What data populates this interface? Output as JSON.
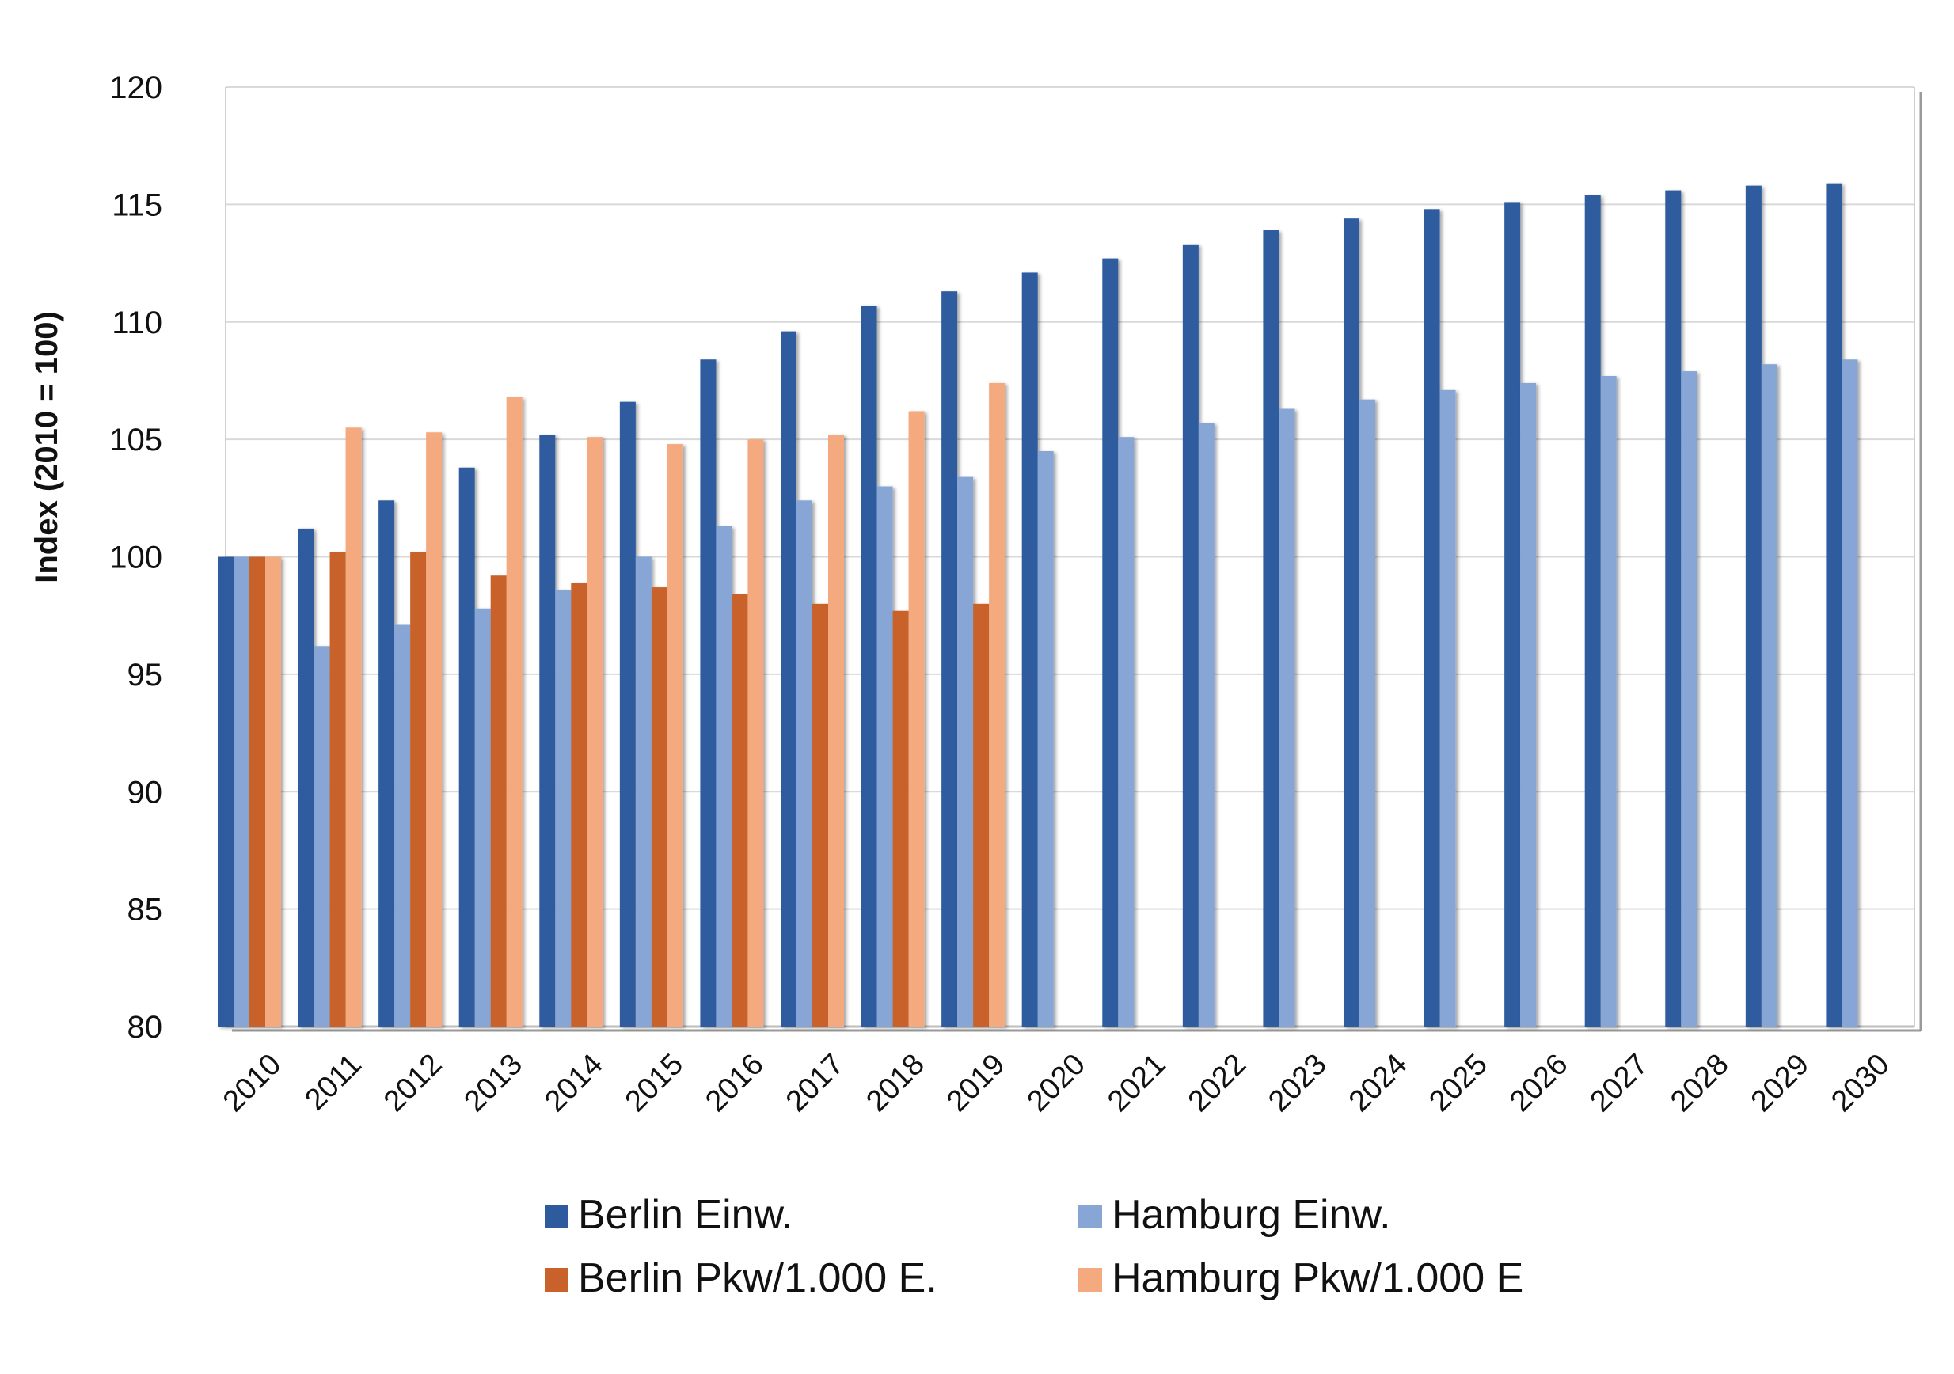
{
  "chart_data": {
    "type": "bar",
    "title": "",
    "xlabel": "",
    "ylabel": "Index (2010 = 100)",
    "ylim": [
      80,
      120
    ],
    "yticks": [
      80,
      85,
      90,
      95,
      100,
      105,
      110,
      115,
      120
    ],
    "grid": true,
    "legend_position": "bottom",
    "categories": [
      "2010",
      "2011",
      "2012",
      "2013",
      "2014",
      "2015",
      "2016",
      "2017",
      "2018",
      "2019",
      "2020",
      "2021",
      "2022",
      "2023",
      "2024",
      "2025",
      "2026",
      "2027",
      "2028",
      "2029",
      "2030"
    ],
    "series": [
      {
        "name": "Berlin Einw.",
        "color": "#2e5b9e",
        "values": [
          100,
          101.2,
          102.4,
          103.8,
          105.2,
          106.6,
          108.4,
          109.6,
          110.7,
          111.3,
          112.1,
          112.7,
          113.3,
          113.9,
          114.4,
          114.8,
          115.1,
          115.4,
          115.6,
          115.8,
          115.9
        ]
      },
      {
        "name": "Hamburg Einw.",
        "color": "#87a6d6",
        "values": [
          100,
          96.2,
          97.1,
          97.8,
          98.6,
          100.0,
          101.3,
          102.4,
          103.0,
          103.4,
          104.5,
          105.1,
          105.7,
          106.3,
          106.7,
          107.1,
          107.4,
          107.7,
          107.9,
          108.2,
          108.4
        ]
      },
      {
        "name": "Berlin Pkw/1.000 E.",
        "color": "#c8622a",
        "values": [
          100,
          100.2,
          100.2,
          99.2,
          98.9,
          98.7,
          98.4,
          98.0,
          97.7,
          98.0,
          null,
          null,
          null,
          null,
          null,
          null,
          null,
          null,
          null,
          null,
          null
        ]
      },
      {
        "name": "Hamburg Pkw/1.000 E",
        "color": "#f4a97f",
        "values": [
          100,
          105.5,
          105.3,
          106.8,
          105.1,
          104.8,
          105.0,
          105.2,
          106.2,
          107.4,
          null,
          null,
          null,
          null,
          null,
          null,
          null,
          null,
          null,
          null,
          null
        ]
      }
    ]
  }
}
